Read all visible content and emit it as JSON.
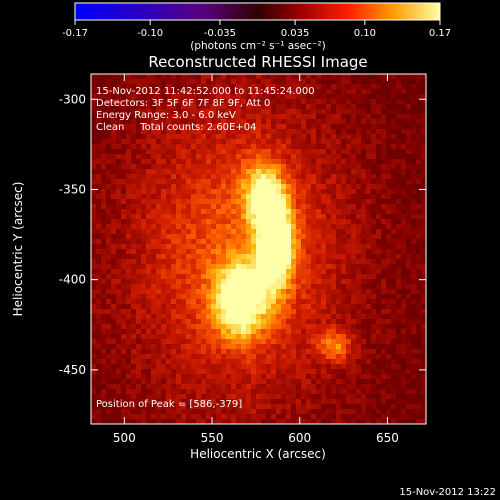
{
  "chart_data": {
    "type": "heatmap",
    "title": "Reconstructed RHESSI Image",
    "xlabel": "Heliocentric X (arcsec)",
    "ylabel": "Heliocentric Y (arcsec)",
    "xlim": [
      481,
      672
    ],
    "ylim": [
      -480,
      -286
    ],
    "x_ticks": [
      500,
      550,
      600,
      650
    ],
    "y_ticks": [
      -300,
      -350,
      -400,
      -450
    ],
    "colorbar": {
      "min": -0.17,
      "max": 0.17,
      "ticks": [
        "-0.17",
        "-0.10",
        "-0.035",
        "0.035",
        "0.10",
        "0.17"
      ],
      "unit_label": "(photons cm⁻² s⁻¹ asec⁻²)"
    },
    "annotations": [
      "15-Nov-2012 11:42:52.000 to 11:45:24.000",
      "Detectors: 3F 5F 6F 7F 8F 9F, Att 0",
      "Energy Range: 3.0 - 6.0 keV",
      "Clean     Total counts: 2.60E+04"
    ],
    "peak_label": "Position of Peak = [586,-379]",
    "peak": [
      586,
      -379
    ],
    "sources": [
      {
        "x": 586,
        "y": -379,
        "sx": 7,
        "sy": 18,
        "amp": 1.0
      },
      {
        "x": 566,
        "y": -412,
        "sx": 10,
        "sy": 14,
        "amp": 0.85
      },
      {
        "x": 578,
        "y": -352,
        "sx": 8,
        "sy": 12,
        "amp": 0.55
      },
      {
        "x": 620,
        "y": -437,
        "sx": 7,
        "sy": 6,
        "amp": 0.45
      },
      {
        "x": 565,
        "y": -385,
        "sx": 45,
        "sy": 60,
        "amp": 0.45
      }
    ],
    "background_level": 0.3,
    "footer_date": "15-Nov-2012 13:22"
  }
}
